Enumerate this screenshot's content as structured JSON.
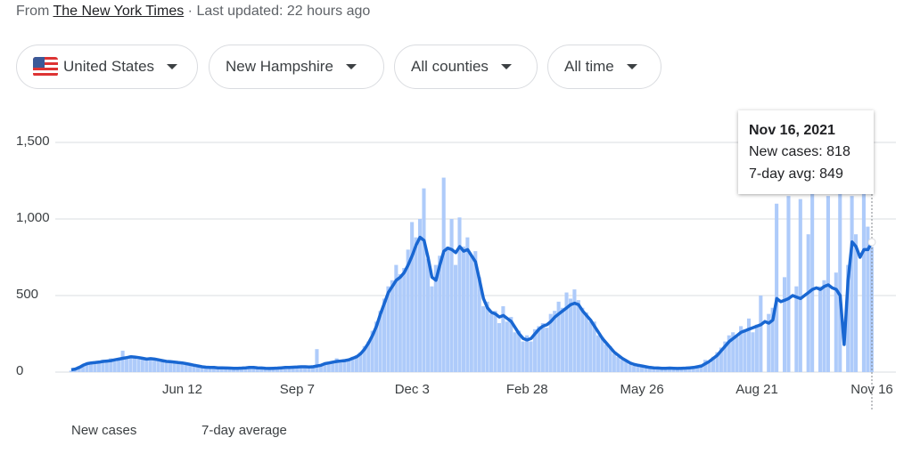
{
  "header": {
    "prefix": "From",
    "source": "The New York Times",
    "updated": "· Last updated: 22 hours ago"
  },
  "filters": [
    "United States",
    "New Hampshire",
    "All counties",
    "All time"
  ],
  "chart_data": {
    "type": "bar",
    "categories": [
      null,
      null,
      null,
      null,
      null,
      null,
      null,
      null,
      null,
      null,
      null,
      null,
      null,
      null,
      null,
      null,
      null,
      null,
      null,
      null,
      null,
      null,
      null,
      null,
      null,
      null,
      null,
      null,
      "Jun 12",
      null,
      null,
      null,
      null,
      null,
      null,
      null,
      null,
      null,
      null,
      null,
      null,
      null,
      null,
      null,
      null,
      null,
      null,
      null,
      null,
      null,
      null,
      null,
      null,
      null,
      null,
      null,
      null,
      "Sep 7",
      null,
      null,
      null,
      null,
      null,
      null,
      null,
      null,
      null,
      null,
      null,
      null,
      null,
      null,
      null,
      null,
      null,
      null,
      null,
      null,
      null,
      null,
      null,
      null,
      null,
      null,
      null,
      null,
      "Dec 3",
      null,
      null,
      null,
      null,
      null,
      null,
      null,
      null,
      null,
      null,
      null,
      null,
      null,
      null,
      null,
      null,
      null,
      null,
      null,
      null,
      null,
      null,
      null,
      null,
      null,
      null,
      null,
      null,
      "Feb 28",
      null,
      null,
      null,
      null,
      null,
      null,
      null,
      null,
      null,
      null,
      null,
      null,
      null,
      null,
      null,
      null,
      null,
      null,
      null,
      null,
      null,
      null,
      null,
      null,
      null,
      null,
      null,
      null,
      "May 26",
      null,
      null,
      null,
      null,
      null,
      null,
      null,
      null,
      null,
      null,
      null,
      null,
      null,
      null,
      null,
      null,
      null,
      null,
      null,
      null,
      null,
      null,
      null,
      null,
      null,
      null,
      null,
      null,
      "Aug 21",
      null,
      null,
      null,
      null,
      null,
      null,
      null,
      null,
      null,
      null,
      null,
      null,
      null,
      null,
      null,
      null,
      null,
      null,
      null,
      null,
      null,
      null,
      null,
      null,
      null,
      null,
      null,
      null,
      "Nov 16"
    ],
    "series": [
      {
        "name": "New cases",
        "type": "bar",
        "color": "#aecbfa",
        "values": [
          10,
          25,
          40,
          50,
          60,
          55,
          70,
          60,
          80,
          75,
          90,
          70,
          85,
          140,
          90,
          110,
          100,
          85,
          95,
          80,
          90,
          75,
          85,
          70,
          60,
          75,
          60,
          55,
          65,
          50,
          45,
          55,
          35,
          30,
          40,
          25,
          35,
          30,
          20,
          30,
          25,
          30,
          20,
          35,
          25,
          40,
          30,
          25,
          30,
          20,
          30,
          25,
          30,
          35,
          25,
          40,
          30,
          35,
          40,
          30,
          35,
          45,
          150,
          40,
          60,
          55,
          70,
          90,
          60,
          85,
          75,
          100,
          110,
          130,
          170,
          200,
          270,
          330,
          400,
          480,
          560,
          600,
          700,
          640,
          680,
          800,
          980,
          880,
          1000,
          1200,
          740,
          560,
          700,
          760,
          1270,
          820,
          1000,
          700,
          1010,
          820,
          880,
          760,
          790,
          620,
          430,
          460,
          380,
          400,
          320,
          430,
          330,
          360,
          260,
          270,
          200,
          240,
          200,
          280,
          300,
          320,
          290,
          380,
          400,
          460,
          420,
          520,
          480,
          540,
          470,
          420,
          390,
          330,
          330,
          240,
          230,
          180,
          170,
          120,
          100,
          80,
          70,
          50,
          40,
          55,
          35,
          30,
          40,
          25,
          30,
          20,
          35,
          25,
          20,
          30,
          25,
          30,
          20,
          35,
          30,
          50,
          80,
          60,
          100,
          130,
          160,
          200,
          240,
          260,
          230,
          300,
          280,
          350,
          260,
          310,
          500,
          0,
          380,
          420,
          1100,
          0,
          620,
          1150,
          0,
          560,
          1130,
          0,
          900,
          1180,
          0,
          560,
          600,
          1150,
          0,
          650,
          1200,
          0,
          700,
          1150,
          900,
          0,
          1180,
          950,
          818
        ]
      },
      {
        "name": "7-day average",
        "type": "line",
        "color": "#1967d2",
        "values": [
          15,
          20,
          30,
          45,
          55,
          60,
          62,
          65,
          70,
          72,
          75,
          80,
          85,
          90,
          95,
          100,
          98,
          95,
          90,
          85,
          88,
          85,
          80,
          75,
          70,
          68,
          65,
          62,
          60,
          55,
          50,
          45,
          40,
          35,
          32,
          30,
          30,
          28,
          28,
          27,
          26,
          25,
          25,
          26,
          28,
          30,
          30,
          28,
          27,
          25,
          24,
          25,
          26,
          28,
          30,
          30,
          32,
          33,
          35,
          35,
          34,
          35,
          40,
          45,
          55,
          60,
          65,
          70,
          72,
          75,
          80,
          90,
          100,
          120,
          150,
          190,
          240,
          300,
          380,
          450,
          520,
          560,
          600,
          620,
          650,
          700,
          760,
          830,
          880,
          860,
          750,
          620,
          600,
          700,
          790,
          810,
          800,
          780,
          820,
          790,
          800,
          760,
          720,
          600,
          480,
          420,
          390,
          380,
          360,
          370,
          350,
          330,
          290,
          250,
          220,
          210,
          220,
          250,
          280,
          300,
          310,
          330,
          360,
          380,
          400,
          420,
          440,
          450,
          440,
          400,
          370,
          340,
          300,
          260,
          220,
          190,
          160,
          130,
          110,
          90,
          75,
          60,
          50,
          45,
          40,
          35,
          30,
          28,
          27,
          25,
          25,
          26,
          25,
          24,
          25,
          26,
          28,
          30,
          35,
          40,
          55,
          70,
          90,
          110,
          140,
          170,
          200,
          220,
          240,
          260,
          270,
          280,
          290,
          300,
          310,
          330,
          320,
          340,
          480,
          460,
          470,
          480,
          500,
          490,
          480,
          500,
          520,
          540,
          550,
          540,
          560,
          570,
          550,
          540,
          500,
          180,
          600,
          850,
          820,
          750,
          800,
          800,
          849
        ]
      }
    ],
    "ylim": [
      0,
      1500
    ],
    "yticks": [
      0,
      500,
      {
        "value": 1000,
        "label": "1,000"
      },
      {
        "value": 1500,
        "label": "1,500"
      }
    ],
    "grid": true,
    "tooltip": {
      "title": "Nov 16, 2021",
      "lines": [
        "New cases: 818",
        "7-day avg: 849"
      ]
    }
  }
}
